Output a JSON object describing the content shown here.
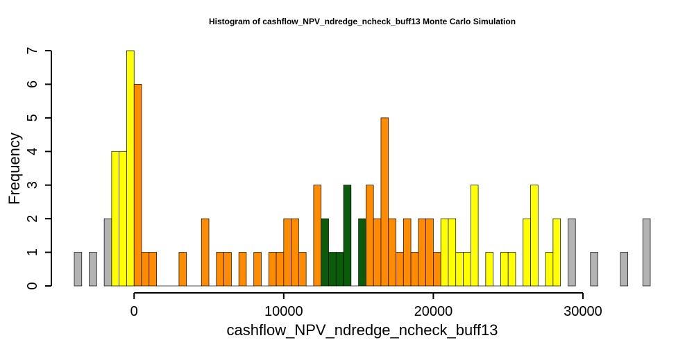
{
  "chart_data": {
    "type": "bar",
    "title": "Histogram of  cashflow_NPV_ndredge_ncheck_buff13  Monte Carlo Simulation",
    "xlabel": "cashflow_NPV_ndredge_ncheck_buff13",
    "ylabel": "Frequency",
    "bin_width": 500,
    "xlim": [
      -4000,
      34500
    ],
    "ylim": [
      0,
      7
    ],
    "x_ticks": [
      0,
      10000,
      20000,
      30000
    ],
    "x_tick_labels": [
      "0",
      "10000",
      "20000",
      "30000"
    ],
    "y_ticks": [
      0,
      1,
      2,
      3,
      4,
      5,
      6,
      7
    ],
    "y_tick_labels": [
      "0",
      "1",
      "2",
      "3",
      "4",
      "5",
      "6",
      "7"
    ],
    "grid": false,
    "colors": {
      "gray": "#b3b3b3",
      "yellow": "#ffff00",
      "orange": "#ff8c00",
      "green": "#0a5c0a"
    },
    "bins": [
      {
        "x": -4000,
        "count": 1,
        "color": "gray"
      },
      {
        "x": -3000,
        "count": 1,
        "color": "gray"
      },
      {
        "x": -2000,
        "count": 2,
        "color": "gray"
      },
      {
        "x": -1500,
        "count": 4,
        "color": "yellow"
      },
      {
        "x": -1000,
        "count": 4,
        "color": "yellow"
      },
      {
        "x": -500,
        "count": 7,
        "color": "yellow"
      },
      {
        "x": 0,
        "count": 6,
        "color": "orange"
      },
      {
        "x": 500,
        "count": 1,
        "color": "orange"
      },
      {
        "x": 1000,
        "count": 1,
        "color": "orange"
      },
      {
        "x": 1500,
        "count": 0,
        "color": "orange"
      },
      {
        "x": 2000,
        "count": 0,
        "color": "orange"
      },
      {
        "x": 2500,
        "count": 0,
        "color": "orange"
      },
      {
        "x": 3000,
        "count": 1,
        "color": "orange"
      },
      {
        "x": 3500,
        "count": 0,
        "color": "orange"
      },
      {
        "x": 4000,
        "count": 0,
        "color": "orange"
      },
      {
        "x": 4500,
        "count": 2,
        "color": "orange"
      },
      {
        "x": 5000,
        "count": 0,
        "color": "orange"
      },
      {
        "x": 5500,
        "count": 1,
        "color": "orange"
      },
      {
        "x": 6000,
        "count": 1,
        "color": "orange"
      },
      {
        "x": 6500,
        "count": 0,
        "color": "orange"
      },
      {
        "x": 7000,
        "count": 1,
        "color": "orange"
      },
      {
        "x": 7500,
        "count": 0,
        "color": "orange"
      },
      {
        "x": 8000,
        "count": 1,
        "color": "orange"
      },
      {
        "x": 8500,
        "count": 0,
        "color": "orange"
      },
      {
        "x": 9000,
        "count": 1,
        "color": "orange"
      },
      {
        "x": 9500,
        "count": 1,
        "color": "orange"
      },
      {
        "x": 10000,
        "count": 2,
        "color": "orange"
      },
      {
        "x": 10500,
        "count": 2,
        "color": "orange"
      },
      {
        "x": 11000,
        "count": 1,
        "color": "orange"
      },
      {
        "x": 11500,
        "count": 0,
        "color": "orange"
      },
      {
        "x": 12000,
        "count": 3,
        "color": "orange"
      },
      {
        "x": 12500,
        "count": 2,
        "color": "green"
      },
      {
        "x": 13000,
        "count": 1,
        "color": "green"
      },
      {
        "x": 13500,
        "count": 1,
        "color": "green"
      },
      {
        "x": 14000,
        "count": 3,
        "color": "green"
      },
      {
        "x": 14500,
        "count": 0,
        "color": "green"
      },
      {
        "x": 15000,
        "count": 2,
        "color": "green"
      },
      {
        "x": 15500,
        "count": 3,
        "color": "orange"
      },
      {
        "x": 16000,
        "count": 2,
        "color": "orange"
      },
      {
        "x": 16500,
        "count": 5,
        "color": "orange"
      },
      {
        "x": 17000,
        "count": 2,
        "color": "orange"
      },
      {
        "x": 17500,
        "count": 1,
        "color": "orange"
      },
      {
        "x": 18000,
        "count": 2,
        "color": "orange"
      },
      {
        "x": 18500,
        "count": 1,
        "color": "orange"
      },
      {
        "x": 19000,
        "count": 2,
        "color": "orange"
      },
      {
        "x": 19500,
        "count": 2,
        "color": "orange"
      },
      {
        "x": 20000,
        "count": 1,
        "color": "orange"
      },
      {
        "x": 20500,
        "count": 2,
        "color": "yellow"
      },
      {
        "x": 21000,
        "count": 2,
        "color": "yellow"
      },
      {
        "x": 21500,
        "count": 1,
        "color": "yellow"
      },
      {
        "x": 22000,
        "count": 1,
        "color": "yellow"
      },
      {
        "x": 22500,
        "count": 3,
        "color": "yellow"
      },
      {
        "x": 23000,
        "count": 0,
        "color": "yellow"
      },
      {
        "x": 23500,
        "count": 1,
        "color": "yellow"
      },
      {
        "x": 24000,
        "count": 0,
        "color": "yellow"
      },
      {
        "x": 24500,
        "count": 1,
        "color": "yellow"
      },
      {
        "x": 25000,
        "count": 1,
        "color": "yellow"
      },
      {
        "x": 25500,
        "count": 0,
        "color": "yellow"
      },
      {
        "x": 26000,
        "count": 2,
        "color": "yellow"
      },
      {
        "x": 26500,
        "count": 3,
        "color": "yellow"
      },
      {
        "x": 27000,
        "count": 0,
        "color": "yellow"
      },
      {
        "x": 27500,
        "count": 1,
        "color": "yellow"
      },
      {
        "x": 28000,
        "count": 2,
        "color": "yellow"
      },
      {
        "x": 29000,
        "count": 2,
        "color": "gray"
      },
      {
        "x": 30500,
        "count": 1,
        "color": "gray"
      },
      {
        "x": 32500,
        "count": 1,
        "color": "gray"
      },
      {
        "x": 34000,
        "count": 2,
        "color": "gray"
      }
    ]
  }
}
